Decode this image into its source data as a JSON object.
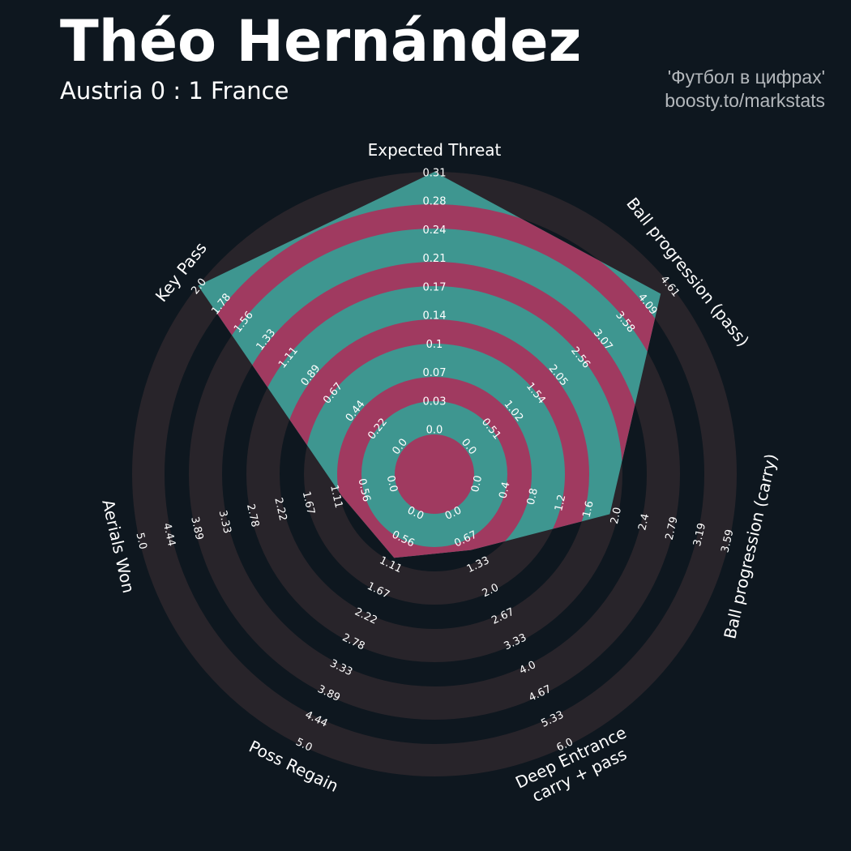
{
  "header": {
    "title": "Théo Hernández",
    "subtitle": "Austria 0 : 1 France",
    "credit_line1": "'Футбол в цифрах'",
    "credit_line2": "boosty.to/markstats"
  },
  "colors": {
    "background": "#0e171f",
    "ring_outside": "#28242a",
    "fill_primary": "#3e9690",
    "fill_alt": "#a03a60",
    "text": "#ffffff"
  },
  "chart_data": {
    "type": "radar",
    "params": [
      {
        "label": [
          "Expected Threat"
        ],
        "min": 0,
        "max": 0.31,
        "value": 0.31,
        "ticks": [
          "0.0",
          "0.03",
          "0.07",
          "0.1",
          "0.14",
          "0.17",
          "0.21",
          "0.24",
          "0.28",
          "0.31"
        ]
      },
      {
        "label": [
          "Ball progression (pass)"
        ],
        "min": 0,
        "max": 4.61,
        "value": 4.38,
        "ticks": [
          "0.0",
          "0.51",
          "1.02",
          "1.54",
          "2.05",
          "2.56",
          "3.07",
          "3.58",
          "4.09",
          "4.61"
        ]
      },
      {
        "label": [
          "Ball progression (carry)"
        ],
        "min": 0,
        "max": 3.59,
        "value": 1.89,
        "ticks": [
          "0.0",
          "0.4",
          "0.8",
          "1.2",
          "1.6",
          "2.0",
          "2.4",
          "2.79",
          "3.19",
          "3.59"
        ]
      },
      {
        "label": [
          "Deep Entrance",
          "carry + pass"
        ],
        "min": 0,
        "max": 6.0,
        "value": 0.94,
        "ticks": [
          "0.0",
          "0.67",
          "1.33",
          "2.0",
          "2.67",
          "3.33",
          "4.0",
          "4.67",
          "5.33",
          "6.0"
        ]
      },
      {
        "label": [
          "Poss Regain"
        ],
        "min": 0,
        "max": 5.0,
        "value": 0.95,
        "ticks": [
          "0.0",
          "0.56",
          "1.11",
          "1.67",
          "2.22",
          "2.78",
          "3.33",
          "3.89",
          "4.44",
          "5.0"
        ]
      },
      {
        "label": [
          "Aerials Won"
        ],
        "min": 0,
        "max": 5.0,
        "value": 1.0,
        "ticks": [
          "0.0",
          "0.56",
          "1.11",
          "1.67",
          "2.22",
          "2.78",
          "3.33",
          "3.89",
          "4.44",
          "5.0"
        ]
      },
      {
        "label": [
          "Key Pass"
        ],
        "min": 0,
        "max": 2.0,
        "value": 2.0,
        "ticks": [
          "0.0",
          "0.22",
          "0.44",
          "0.67",
          "0.89",
          "1.11",
          "1.33",
          "1.56",
          "1.78",
          "2.0"
        ]
      }
    ]
  }
}
